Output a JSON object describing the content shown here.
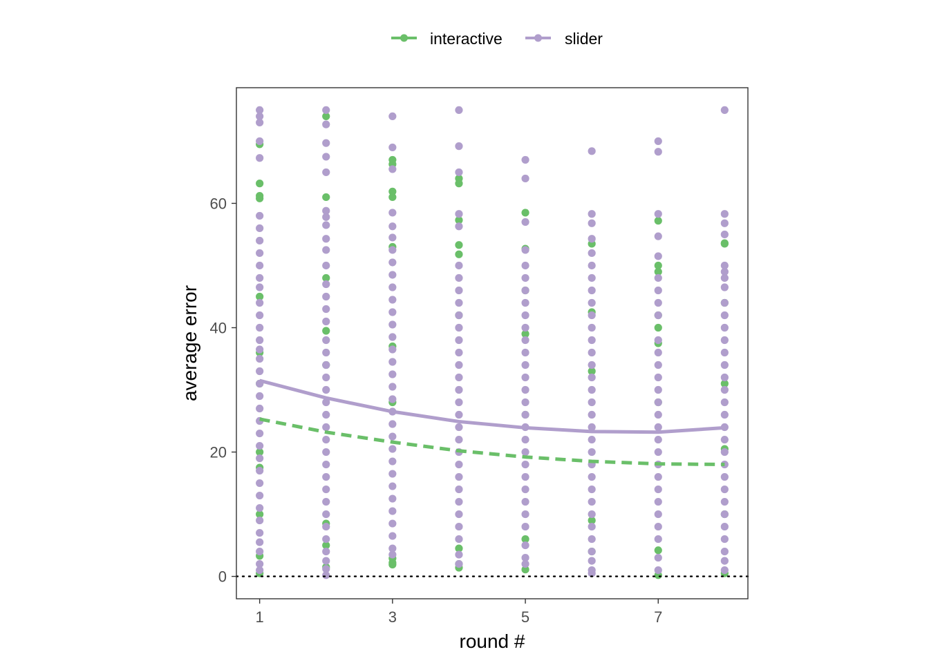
{
  "chart_data": {
    "type": "scatter",
    "xlabel": "round #",
    "ylabel": "average error",
    "xlim": [
      0.65,
      8.35
    ],
    "ylim": [
      -3.6,
      78.6
    ],
    "x_ticks": [
      "1",
      "3",
      "5",
      "7"
    ],
    "y_ticks": [
      "0",
      "20",
      "40",
      "60"
    ],
    "grid": false,
    "legend_position": "top",
    "reference_line": {
      "y": 0,
      "style": "dotted",
      "color": "#000000"
    },
    "series": [
      {
        "name": "interactive",
        "color": "#6abf69",
        "fit_style": "dashed",
        "fit": {
          "x": [
            1,
            2,
            3,
            4,
            5,
            6,
            7,
            8
          ],
          "y": [
            25.3,
            23.2,
            21.6,
            20.2,
            19.2,
            18.5,
            18.1,
            18.0
          ]
        },
        "points": [
          {
            "x": 1,
            "y": [
              0.5,
              3.3,
              69.5,
              63.2,
              61.2,
              60.8,
              45.0,
              36.0,
              31.0,
              20.0,
              17.5,
              10.0
            ]
          },
          {
            "x": 2,
            "y": [
              1.5,
              74.0,
              61.0,
              48.0,
              39.5,
              34.0,
              8.5,
              5.0
            ]
          },
          {
            "x": 3,
            "y": [
              1.9,
              2.2,
              2.9,
              61.9,
              61.0,
              67.0,
              66.3,
              53.0,
              37.0,
              28.0
            ]
          },
          {
            "x": 4,
            "y": [
              1.4,
              2.0,
              64.0,
              63.2,
              57.3,
              53.3,
              51.8,
              42.0,
              4.5
            ]
          },
          {
            "x": 5,
            "y": [
              1.1,
              58.5,
              52.7,
              46.0,
              39.0,
              26.0,
              6.0
            ]
          },
          {
            "x": 6,
            "y": [
              4.0,
              53.5,
              42.5,
              33.0,
              9.0
            ]
          },
          {
            "x": 7,
            "y": [
              0.2,
              4.2,
              57.2,
              50.0,
              49.0,
              42.0,
              40.0,
              37.5,
              28.0
            ]
          },
          {
            "x": 8,
            "y": [
              0.5,
              53.6,
              53.5,
              44.0,
              31.0,
              20.5,
              10.0
            ]
          }
        ]
      },
      {
        "name": "slider",
        "color": "#b09ecc",
        "fit_style": "solid",
        "fit": {
          "x": [
            1,
            2,
            3,
            4,
            5,
            6,
            7,
            8
          ],
          "y": [
            31.5,
            28.7,
            26.5,
            24.9,
            23.9,
            23.3,
            23.2,
            23.9
          ]
        },
        "points": [
          {
            "x": 1,
            "y": [
              75.0,
              74.0,
              73.0,
              70.0,
              67.3,
              58.0,
              56.0,
              54.0,
              52.0,
              50.0,
              48.0,
              46.5,
              44.0,
              42.0,
              40.0,
              38.0,
              36.5,
              35.0,
              33.0,
              31.0,
              29.0,
              27.0,
              25.0,
              23.0,
              21.0,
              19.0,
              17.0,
              15.0,
              13.0,
              11.0,
              9.0,
              7.0,
              5.5,
              4.0,
              2.0,
              1.0
            ]
          },
          {
            "x": 2,
            "y": [
              75.0,
              72.7,
              69.7,
              67.5,
              65.0,
              58.8,
              57.8,
              56.5,
              54.3,
              52.5,
              50.0,
              47.0,
              45.0,
              43.0,
              41.0,
              38.0,
              36.0,
              34.0,
              32.0,
              30.0,
              28.0,
              26.0,
              24.0,
              22.0,
              20.0,
              18.0,
              16.0,
              14.0,
              12.0,
              10.0,
              8.0,
              6.0,
              4.0,
              2.5,
              1.2,
              0.2
            ]
          },
          {
            "x": 3,
            "y": [
              74.0,
              69.0,
              65.5,
              58.5,
              56.3,
              54.5,
              52.5,
              50.5,
              48.5,
              46.5,
              44.5,
              42.5,
              40.5,
              38.5,
              36.5,
              34.5,
              32.5,
              30.5,
              28.5,
              26.5,
              24.5,
              22.5,
              20.5,
              18.5,
              16.5,
              14.5,
              12.5,
              10.5,
              8.5,
              6.5,
              4.5,
              3.5
            ]
          },
          {
            "x": 4,
            "y": [
              75.0,
              69.2,
              65.0,
              58.3,
              56.3,
              50.0,
              48.0,
              46.0,
              44.0,
              42.0,
              40.0,
              38.0,
              36.0,
              34.0,
              32.0,
              30.0,
              28.0,
              26.0,
              24.0,
              22.0,
              20.0,
              18.0,
              16.0,
              14.0,
              12.0,
              10.0,
              8.0,
              6.0,
              3.5,
              2.0
            ]
          },
          {
            "x": 5,
            "y": [
              67.0,
              64.0,
              57.0,
              52.5,
              50.0,
              48.0,
              46.0,
              44.0,
              42.0,
              40.0,
              38.0,
              36.0,
              34.0,
              32.0,
              30.0,
              28.0,
              26.0,
              24.0,
              22.0,
              20.0,
              18.0,
              16.0,
              14.0,
              12.0,
              10.0,
              8.0,
              5.0,
              3.0,
              2.0
            ]
          },
          {
            "x": 6,
            "y": [
              68.4,
              58.3,
              56.8,
              54.3,
              52.0,
              50.0,
              48.0,
              46.0,
              44.0,
              42.0,
              40.0,
              38.0,
              36.0,
              34.0,
              32.0,
              30.0,
              28.0,
              26.0,
              24.0,
              22.0,
              20.0,
              18.0,
              16.0,
              14.0,
              12.0,
              10.0,
              8.0,
              6.0,
              4.0,
              2.5,
              1.0,
              0.5
            ]
          },
          {
            "x": 7,
            "y": [
              70.0,
              68.3,
              58.3,
              54.7,
              51.5,
              48.0,
              46.0,
              44.0,
              42.0,
              38.0,
              36.0,
              34.0,
              32.0,
              30.0,
              28.0,
              26.0,
              24.0,
              22.0,
              20.0,
              18.0,
              16.0,
              14.0,
              12.0,
              10.0,
              8.0,
              6.0,
              3.0,
              1.0
            ]
          },
          {
            "x": 8,
            "y": [
              75.0,
              58.3,
              56.8,
              55.0,
              50.0,
              49.0,
              48.0,
              46.5,
              44.0,
              42.0,
              40.0,
              38.0,
              36.0,
              34.0,
              32.0,
              30.0,
              28.0,
              26.0,
              24.0,
              22.0,
              20.0,
              18.0,
              16.0,
              14.0,
              12.0,
              10.0,
              8.0,
              6.0,
              4.0,
              2.5,
              1.0
            ]
          }
        ]
      }
    ]
  }
}
